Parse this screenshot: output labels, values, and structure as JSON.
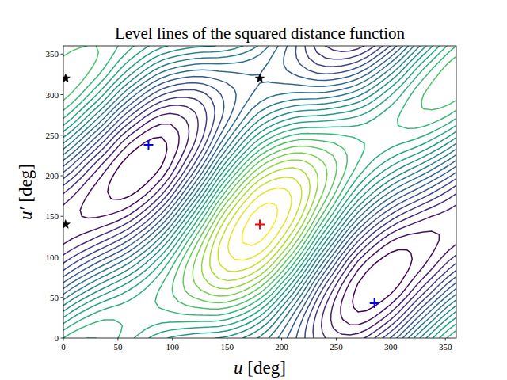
{
  "chart_data": {
    "type": "contour",
    "title": "Level lines of the squared distance function",
    "x_label": "u [deg]",
    "y_label": "u′ [deg]",
    "xlim": [
      0,
      360
    ],
    "ylim": [
      0,
      360
    ],
    "xticks": [
      0,
      50,
      100,
      150,
      200,
      250,
      300,
      350
    ],
    "yticks": [
      0,
      50,
      100,
      150,
      200,
      250,
      300,
      350
    ],
    "grid_x": [
      0,
      30,
      60,
      90,
      120,
      150,
      180,
      210,
      240,
      270,
      300,
      330,
      360
    ],
    "grid_y": [
      0,
      30,
      60,
      90,
      120,
      150,
      180,
      210,
      240,
      270,
      300,
      330,
      360
    ],
    "z": [
      [
        2.07,
        2.19,
        1.99,
        1.74,
        1.62,
        1.56,
        1.33,
        0.92,
        0.51,
        0.46,
        0.88,
        1.54,
        2.07
      ],
      [
        1.64,
        1.97,
        2.04,
        2.04,
        2.09,
        2.07,
        1.76,
        1.13,
        0.47,
        0.16,
        0.41,
        1.03,
        1.64
      ],
      [
        1.13,
        1.54,
        1.82,
        2.09,
        2.39,
        2.54,
        2.27,
        1.56,
        0.68,
        0.12,
        0.11,
        0.56,
        1.13
      ],
      [
        0.66,
        1.03,
        1.39,
        1.87,
        2.44,
        2.84,
        2.74,
        2.07,
        1.11,
        0.33,
        0.07,
        0.26,
        0.66
      ],
      [
        0.36,
        0.56,
        0.88,
        1.44,
        2.22,
        2.89,
        3.04,
        2.54,
        1.62,
        0.76,
        0.28,
        0.22,
        0.36
      ],
      [
        0.32,
        0.26,
        0.41,
        0.93,
        1.79,
        2.67,
        3.09,
        2.84,
        2.09,
        1.27,
        0.71,
        0.43,
        0.32
      ],
      [
        0.53,
        0.22,
        0.11,
        0.46,
        1.28,
        2.24,
        2.87,
        2.89,
        2.39,
        1.74,
        1.22,
        0.86,
        0.53
      ],
      [
        0.96,
        0.43,
        0.07,
        0.16,
        0.81,
        1.73,
        2.44,
        2.67,
        2.44,
        2.04,
        1.69,
        1.37,
        0.96
      ],
      [
        1.47,
        0.86,
        0.28,
        0.12,
        0.51,
        1.26,
        1.93,
        2.24,
        2.22,
        2.09,
        1.99,
        1.84,
        1.47
      ],
      [
        1.94,
        1.37,
        0.71,
        0.33,
        0.47,
        0.96,
        1.46,
        1.73,
        1.79,
        1.87,
        2.04,
        2.14,
        1.94
      ],
      [
        2.24,
        1.84,
        1.22,
        0.76,
        0.68,
        0.92,
        1.16,
        1.26,
        1.28,
        1.44,
        1.82,
        2.19,
        2.24
      ],
      [
        2.29,
        2.14,
        1.69,
        1.27,
        1.11,
        1.13,
        1.12,
        0.96,
        0.81,
        0.93,
        1.39,
        1.97,
        2.29
      ],
      [
        2.07,
        2.19,
        1.99,
        1.74,
        1.62,
        1.56,
        1.33,
        0.92,
        0.51,
        0.46,
        0.88,
        1.54,
        2.07
      ]
    ],
    "levels": [
      0.15,
      0.27,
      0.39,
      0.51,
      0.63,
      0.75,
      0.87,
      0.99,
      1.11,
      1.23,
      1.35,
      1.47,
      1.59,
      1.71,
      1.83,
      1.95,
      2.07,
      2.19,
      2.31,
      2.43,
      2.55,
      2.67,
      2.79,
      2.91,
      3.03
    ],
    "series": [
      {
        "color": "#000000",
        "marker": "star",
        "x": [
          2,
          2,
          180
        ],
        "values": [
          140,
          320,
          320
        ]
      },
      {
        "color": "#0000ff",
        "marker": "plus",
        "x": [
          78,
          285
        ],
        "values": [
          238,
          43
        ]
      },
      {
        "color": "#ff0000",
        "marker": "plus",
        "x": [
          180
        ],
        "values": [
          140
        ]
      }
    ]
  }
}
